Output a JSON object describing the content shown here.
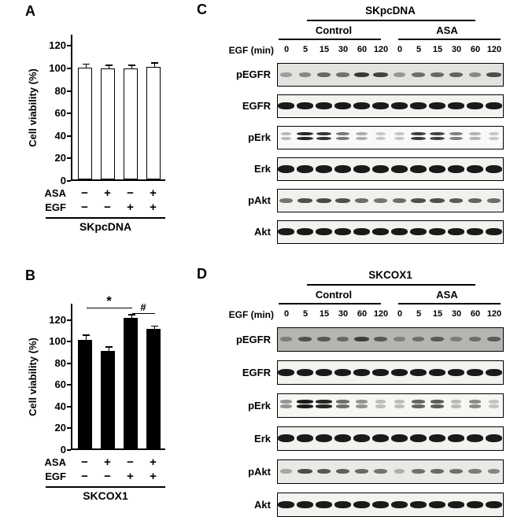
{
  "panels": {
    "A": {
      "label": "A",
      "ylabel": "Cell viability (%)",
      "group_label": "SKpcDNA",
      "treatments": [
        {
          "label": "ASA",
          "signs": [
            "−",
            "+",
            "−",
            "+"
          ]
        },
        {
          "label": "EGF",
          "signs": [
            "−",
            "−",
            "+",
            "+"
          ]
        }
      ]
    },
    "B": {
      "label": "B",
      "ylabel": "Cell viability (%)",
      "group_label": "SKCOX1",
      "treatments": [
        {
          "label": "ASA",
          "signs": [
            "−",
            "+",
            "−",
            "+"
          ]
        },
        {
          "label": "EGF",
          "signs": [
            "−",
            "−",
            "+",
            "+"
          ]
        }
      ]
    },
    "C": {
      "label": "C",
      "title": "SKpcDNA",
      "conditions": [
        "Control",
        "ASA"
      ],
      "egf_label": "EGF (min)",
      "timepoints": [
        "0",
        "5",
        "15",
        "30",
        "60",
        "120",
        "0",
        "5",
        "15",
        "30",
        "60",
        "120"
      ],
      "rows": [
        {
          "name": "pEGFR",
          "bg": "#e3e2de",
          "band_h": 6,
          "doublet": false,
          "bands": [
            0.18,
            0.32,
            0.5,
            0.45,
            0.78,
            0.72,
            0.22,
            0.46,
            0.5,
            0.52,
            0.3,
            0.66
          ]
        },
        {
          "name": "EGFR",
          "bg": "#f3f2ef",
          "band_h": 9,
          "doublet": false,
          "bands": [
            0.95,
            0.95,
            0.95,
            0.95,
            0.95,
            0.95,
            0.95,
            0.95,
            0.95,
            0.95,
            0.95,
            0.95
          ]
        },
        {
          "name": "pErk",
          "bg": "#faf9f7",
          "band_h": 5,
          "doublet": true,
          "bands": [
            0.12,
            0.9,
            0.82,
            0.45,
            0.18,
            0.05,
            0.05,
            0.78,
            0.75,
            0.42,
            0.15,
            0.05
          ]
        },
        {
          "name": "Erk",
          "bg": "#f3f2ef",
          "band_h": 10,
          "doublet": false,
          "bands": [
            0.95,
            0.95,
            0.95,
            0.95,
            0.95,
            0.95,
            0.95,
            0.95,
            0.95,
            0.95,
            0.95,
            0.95
          ]
        },
        {
          "name": "pAkt",
          "bg": "#f1f0ec",
          "band_h": 6,
          "doublet": false,
          "bands": [
            0.45,
            0.66,
            0.7,
            0.66,
            0.5,
            0.45,
            0.5,
            0.66,
            0.66,
            0.6,
            0.55,
            0.5
          ]
        },
        {
          "name": "Akt",
          "bg": "#f3f2ef",
          "band_h": 9,
          "doublet": false,
          "bands": [
            0.95,
            0.95,
            0.95,
            0.95,
            0.95,
            0.95,
            0.95,
            0.95,
            0.95,
            0.95,
            0.95,
            0.95
          ]
        }
      ]
    },
    "D": {
      "label": "D",
      "title": "SKCOX1",
      "conditions": [
        "Control",
        "ASA"
      ],
      "egf_label": "EGF (min)",
      "timepoints": [
        "0",
        "5",
        "15",
        "30",
        "60",
        "120",
        "0",
        "5",
        "15",
        "30",
        "60",
        "120"
      ],
      "rows": [
        {
          "name": "pEGFR",
          "bg": "#b7b5b1",
          "band_h": 6,
          "doublet": false,
          "bands": [
            0.2,
            0.52,
            0.46,
            0.35,
            0.68,
            0.46,
            0.18,
            0.3,
            0.46,
            0.2,
            0.3,
            0.46
          ]
        },
        {
          "name": "EGFR",
          "bg": "#f3f2ef",
          "band_h": 9,
          "doublet": false,
          "bands": [
            0.95,
            0.95,
            0.95,
            0.95,
            0.95,
            0.95,
            0.95,
            0.95,
            0.95,
            0.95,
            0.95,
            0.95
          ]
        },
        {
          "name": "pErk",
          "bg": "#f7f6f3",
          "band_h": 5,
          "doublet": true,
          "bands": [
            0.3,
            0.95,
            0.9,
            0.5,
            0.3,
            0.08,
            0.08,
            0.56,
            0.6,
            0.1,
            0.35,
            0.05
          ]
        },
        {
          "name": "Erk",
          "bg": "#f3f2ef",
          "band_h": 10,
          "doublet": false,
          "bands": [
            0.95,
            0.95,
            0.95,
            0.95,
            0.95,
            0.95,
            0.95,
            0.95,
            0.95,
            0.95,
            0.95,
            0.95
          ]
        },
        {
          "name": "pAkt",
          "bg": "#ebe9e5",
          "band_h": 6,
          "doublet": false,
          "bands": [
            0.15,
            0.66,
            0.6,
            0.56,
            0.5,
            0.45,
            0.12,
            0.46,
            0.5,
            0.46,
            0.4,
            0.35
          ]
        },
        {
          "name": "Akt",
          "bg": "#f3f2ef",
          "band_h": 9,
          "doublet": false,
          "bands": [
            0.95,
            0.95,
            0.95,
            0.95,
            0.95,
            0.95,
            0.95,
            0.95,
            0.95,
            0.95,
            0.95,
            0.95
          ]
        }
      ]
    }
  },
  "chart_data": [
    {
      "type": "bar",
      "panel": "A",
      "title": "SKpcDNA",
      "ylabel": "Cell viability (%)",
      "xlabel": "",
      "ylim": [
        0,
        130
      ],
      "yticks": [
        0,
        20,
        40,
        60,
        80,
        100,
        120
      ],
      "categories": [
        "ASA − / EGF −",
        "ASA + / EGF −",
        "ASA − / EGF +",
        "ASA + / EGF +"
      ],
      "values": [
        100,
        99,
        99,
        101
      ],
      "errors": [
        2,
        2,
        2,
        2
      ],
      "bar_fill": "#ffffff",
      "grid": false,
      "annotations": []
    },
    {
      "type": "bar",
      "panel": "B",
      "title": "SKCOX1",
      "ylabel": "Cell viability (%)",
      "xlabel": "",
      "ylim": [
        0,
        135
      ],
      "yticks": [
        0,
        20,
        40,
        60,
        80,
        100,
        120
      ],
      "categories": [
        "ASA − / EGF −",
        "ASA + / EGF −",
        "ASA − / EGF +",
        "ASA + / EGF +"
      ],
      "values": [
        101,
        91,
        121,
        111
      ],
      "errors": [
        3,
        2,
        2,
        1.5
      ],
      "bar_fill": "#000000",
      "grid": false,
      "annotations": [
        {
          "symbol": "*",
          "from_bar": 0,
          "to_bar": 2,
          "y": 131.5
        },
        {
          "symbol": "#",
          "from_bar": 2,
          "to_bar": 3,
          "y": 126.5
        }
      ]
    }
  ]
}
